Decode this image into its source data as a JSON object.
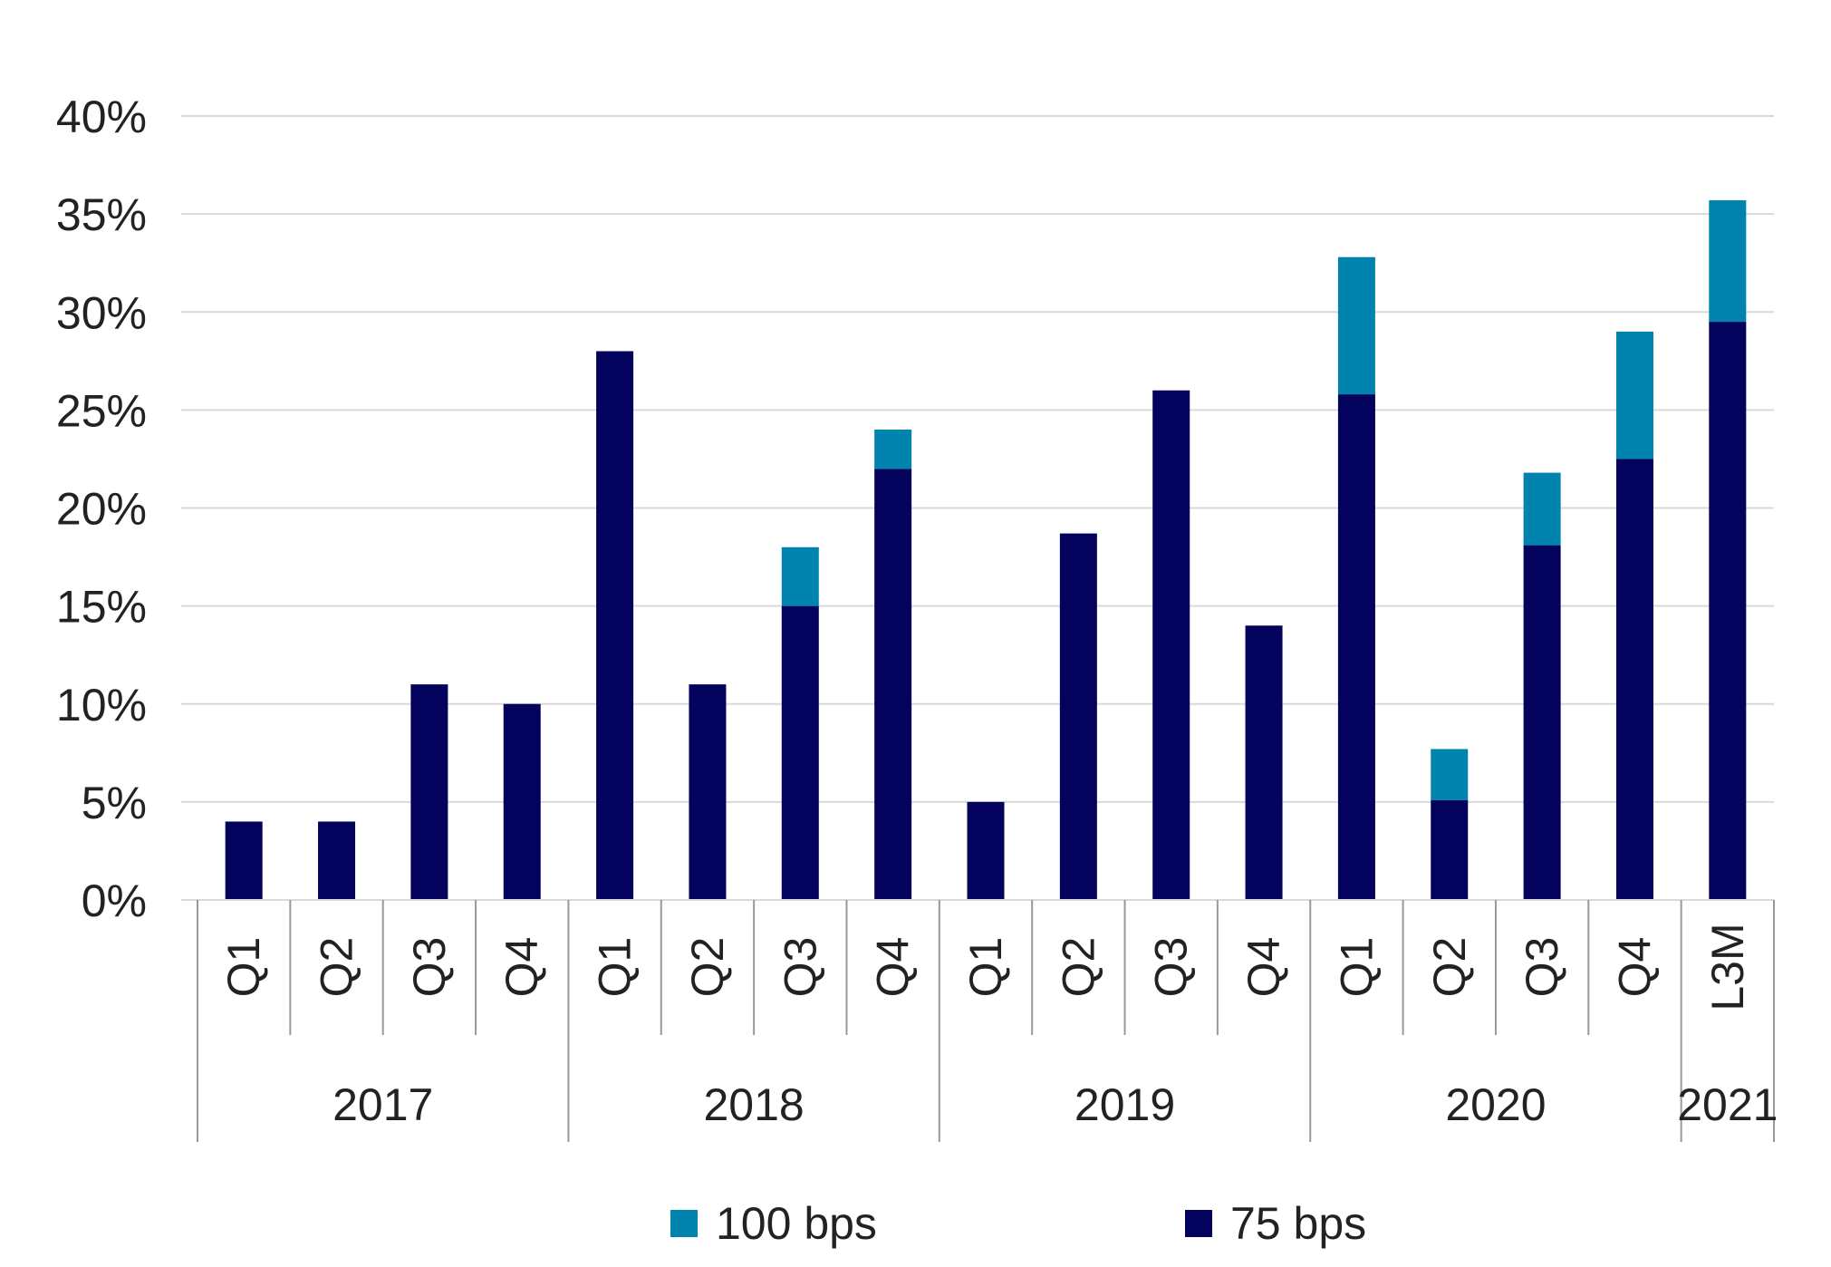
{
  "chart_data": {
    "type": "bar",
    "stacked": true,
    "title": "",
    "xlabel": "",
    "ylabel": "",
    "categories": [
      "Q1",
      "Q2",
      "Q3",
      "Q4",
      "Q1",
      "Q2",
      "Q3",
      "Q4",
      "Q1",
      "Q2",
      "Q3",
      "Q4",
      "Q1",
      "Q2",
      "Q3",
      "Q4",
      "L3M"
    ],
    "groups": [
      {
        "label": "2017",
        "count": 4
      },
      {
        "label": "2018",
        "count": 4
      },
      {
        "label": "2019",
        "count": 4
      },
      {
        "label": "2020",
        "count": 4
      },
      {
        "label": "2021",
        "count": 1
      }
    ],
    "series": [
      {
        "name": "75 bps",
        "color": "#03035e",
        "values": [
          4,
          4,
          11,
          10,
          28,
          11,
          15,
          22,
          5,
          18.7,
          26,
          14,
          25.8,
          5.1,
          18.1,
          22.5,
          29.5
        ]
      },
      {
        "name": "100 bps",
        "color": "#0083ad",
        "values": [
          0,
          0,
          0,
          0,
          0,
          0,
          3,
          2,
          0,
          0,
          0,
          0,
          7,
          2.6,
          3.7,
          6.5,
          6.2
        ]
      }
    ],
    "ylim": [
      0,
      40
    ],
    "yticks": [
      0,
      5,
      10,
      15,
      20,
      25,
      30,
      35,
      40
    ],
    "ytick_labels": [
      "0%",
      "5%",
      "10%",
      "15%",
      "20%",
      "25%",
      "30%",
      "35%",
      "40%"
    ],
    "grid": true,
    "legend": {
      "position": "bottom",
      "order": [
        "100 bps",
        "75 bps"
      ]
    }
  }
}
